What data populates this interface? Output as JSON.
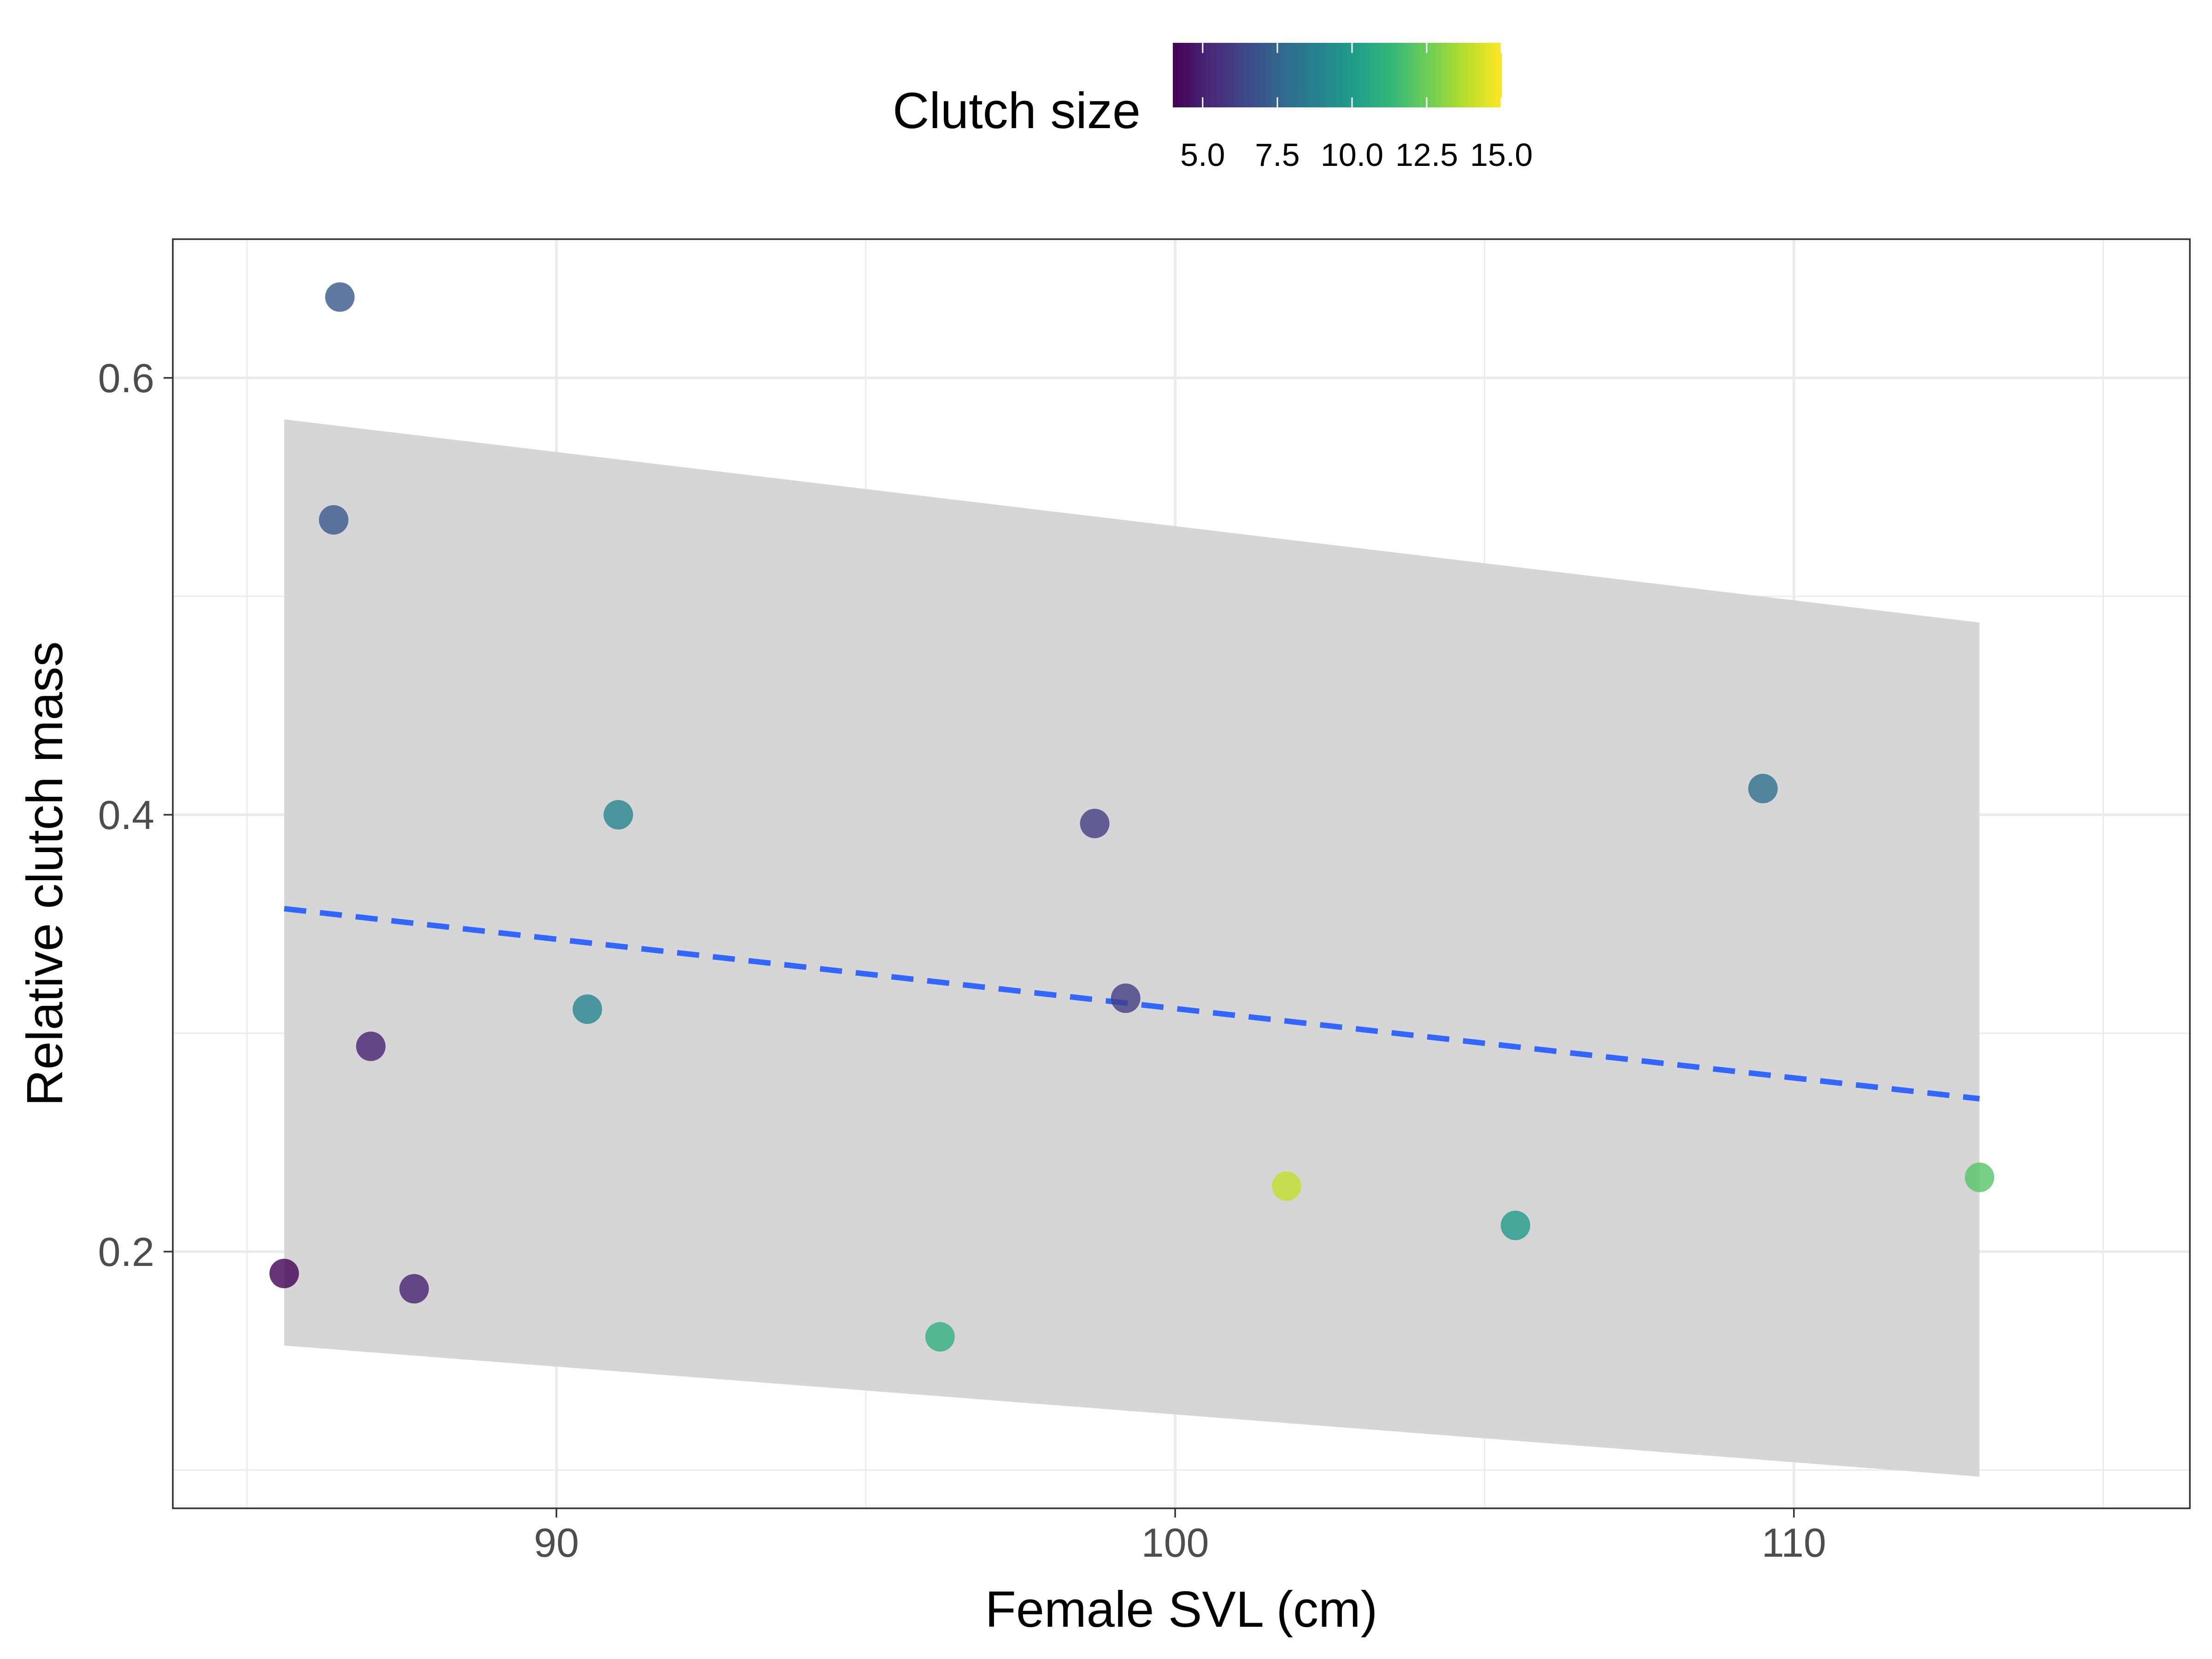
{
  "chart_data": {
    "type": "scatter",
    "title": "",
    "xlabel": "Female SVL (cm)",
    "ylabel": "Relative clutch mass",
    "xlim": [
      83.8,
      116.4
    ],
    "ylim": [
      0.0825,
      0.6635
    ],
    "x_ticks": [
      90,
      100,
      110
    ],
    "x_tick_labels": [
      "90",
      "100",
      "110"
    ],
    "y_ticks": [
      0.2,
      0.4,
      0.6
    ],
    "y_tick_labels": [
      "0.2",
      "0.4",
      "0.6"
    ],
    "grid": true,
    "legend": {
      "title": "Clutch size",
      "position": "top",
      "type": "colorbar",
      "range": [
        4,
        15
      ],
      "ticks": [
        5.0,
        7.5,
        10.0,
        12.5,
        15.0
      ],
      "tick_labels": [
        "5.0",
        "7.5",
        "10.0",
        "12.5",
        "15.0"
      ],
      "palette": [
        "#440154",
        "#482878",
        "#3e4989",
        "#31688e",
        "#26828e",
        "#1f9e89",
        "#35b779",
        "#6ece58",
        "#b5de2b",
        "#fde725"
      ]
    },
    "points": [
      {
        "x": 85.6,
        "y": 0.19,
        "clutch_size": 4
      },
      {
        "x": 86.4,
        "y": 0.535,
        "clutch_size": 7
      },
      {
        "x": 86.5,
        "y": 0.637,
        "clutch_size": 7
      },
      {
        "x": 87.0,
        "y": 0.294,
        "clutch_size": 5
      },
      {
        "x": 87.7,
        "y": 0.183,
        "clutch_size": 5
      },
      {
        "x": 90.5,
        "y": 0.311,
        "clutch_size": 9
      },
      {
        "x": 91.0,
        "y": 0.4,
        "clutch_size": 9
      },
      {
        "x": 96.2,
        "y": 0.161,
        "clutch_size": 11
      },
      {
        "x": 98.7,
        "y": 0.396,
        "clutch_size": 6
      },
      {
        "x": 99.2,
        "y": 0.316,
        "clutch_size": 6
      },
      {
        "x": 101.8,
        "y": 0.23,
        "clutch_size": 14
      },
      {
        "x": 105.5,
        "y": 0.212,
        "clutch_size": 10
      },
      {
        "x": 109.5,
        "y": 0.412,
        "clutch_size": 8
      },
      {
        "x": 113.0,
        "y": 0.234,
        "clutch_size": 12
      }
    ],
    "fit_line": {
      "style": "dashed",
      "color": "#3366ff",
      "x": [
        85.6,
        113.0
      ],
      "y": [
        0.357,
        0.27
      ]
    },
    "confidence_band": {
      "color": "#d6d6d6",
      "x": [
        85.6,
        113.0
      ],
      "upper": [
        0.581,
        0.488
      ],
      "lower": [
        0.157,
        0.097
      ]
    }
  }
}
